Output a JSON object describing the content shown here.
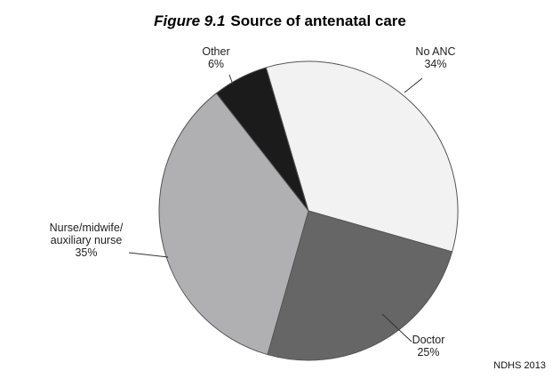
{
  "title": {
    "figure": "Figure 9.1",
    "text": "Source of antenatal care"
  },
  "source_note": "NDHS 2013",
  "chart_data": {
    "type": "pie",
    "slices": [
      {
        "label": [
          "No ANC"
        ],
        "value": 34,
        "pct": "34%",
        "color": "#f2f2f2"
      },
      {
        "label": [
          "Doctor"
        ],
        "value": 25,
        "pct": "25%",
        "color": "#666666"
      },
      {
        "label": [
          "Nurse/midwife/",
          "auxiliary nurse"
        ],
        "value": 35,
        "pct": "35%",
        "color": "#b0b0b2"
      },
      {
        "label": [
          "Other"
        ],
        "value": 6,
        "pct": "6%",
        "color": "#1b1b1b"
      }
    ]
  }
}
